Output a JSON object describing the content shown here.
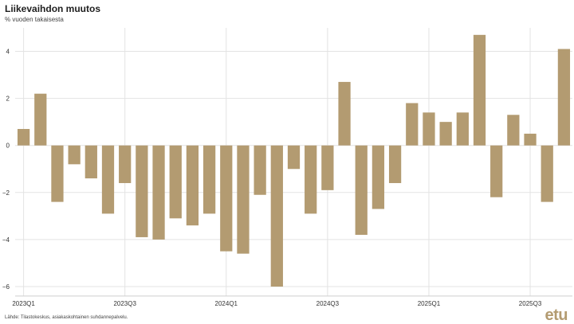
{
  "title": "Liikevaihdon muutos",
  "subtitle": "% vuoden takaisesta",
  "source": "Lähde: Tilastokeskus, asiakaskohtainen suhdannepalvelu.",
  "logo_text": "etu",
  "colors": {
    "bar": "#b39b71",
    "grid": "#e3e3e3",
    "logo": "#b39b71"
  },
  "chart_data": {
    "type": "bar",
    "title": "Liikevaihdon muutos",
    "subtitle": "% vuoden takaisesta",
    "xlabel": "",
    "ylabel": "",
    "ylim": [
      -6.4,
      5
    ],
    "yticks": [
      -6,
      -4,
      -2,
      0,
      2,
      4
    ],
    "ytick_labels": [
      "−6",
      "−4",
      "−2",
      "0",
      "2",
      "4"
    ],
    "grid": true,
    "legend": "none",
    "xtick_labels": [
      {
        "label": "2023Q1",
        "index": 0
      },
      {
        "label": "2023Q3",
        "index": 6
      },
      {
        "label": "2024Q1",
        "index": 12
      },
      {
        "label": "2024Q3",
        "index": 18
      },
      {
        "label": "2025Q1",
        "index": 24
      },
      {
        "label": "2025Q3",
        "index": 30
      }
    ],
    "values": [
      0.7,
      2.2,
      -2.4,
      -0.8,
      -1.4,
      -2.9,
      -1.6,
      -3.9,
      -4.0,
      -3.1,
      -3.4,
      -2.9,
      -4.5,
      -4.6,
      -2.1,
      -6.0,
      -1.0,
      -2.9,
      -1.9,
      2.7,
      -3.8,
      -2.7,
      -1.6,
      1.8,
      1.4,
      1.0,
      1.4,
      4.7,
      -2.2,
      1.3,
      0.5,
      -2.4,
      4.1
    ]
  }
}
